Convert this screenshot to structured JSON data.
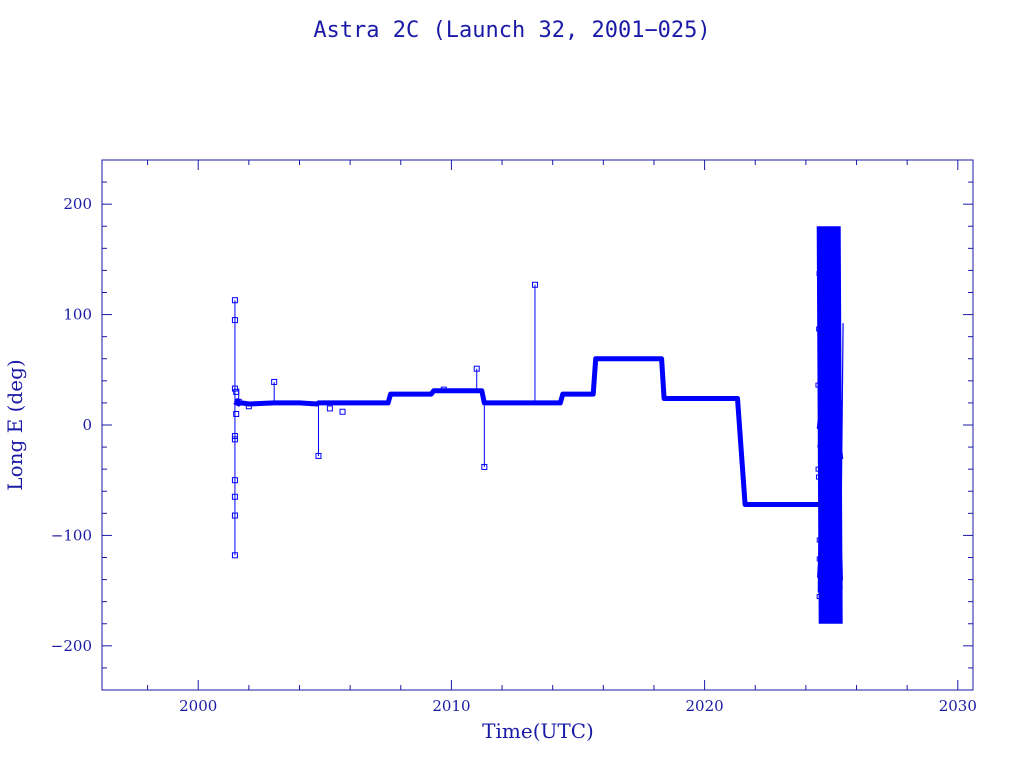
{
  "colors": {
    "text": "#1a1aa6",
    "axis": "#1a1aa6",
    "series": "#0000ff"
  },
  "chart_data": {
    "type": "line",
    "title": "Astra 2C (Launch 32, 2001−025)",
    "xlabel": "Time(UTC)",
    "ylabel": "Long E (deg)",
    "xlim": [
      1996.2,
      2030.6
    ],
    "ylim": [
      -240,
      240
    ],
    "x_ticks": [
      2000,
      2010,
      2020,
      2030
    ],
    "x_tick_labels": [
      "2000",
      "2010",
      "2020",
      "2030"
    ],
    "y_ticks": [
      -200,
      -100,
      0,
      100,
      200
    ],
    "y_tick_labels": [
      "−200",
      "−100",
      "0",
      "100",
      "200"
    ],
    "grid": false,
    "legend": "none",
    "series": [
      {
        "x": [
          2001.45,
          2001.5,
          2001.55,
          2001.6,
          2001.65,
          2001.7,
          2002.0,
          2003.0,
          2003.1,
          2004.0,
          2004.7,
          2004.75,
          2004.8,
          2005.2,
          2005.7,
          2006.5,
          2007.5,
          2007.6,
          2008.5,
          2009.2,
          2009.3,
          2010.0,
          2010.5,
          2011.2,
          2011.3,
          2011.5,
          2012.5,
          2013.3,
          2013.4,
          2014.3,
          2014.4,
          2015.6,
          2015.7,
          2016.5,
          2017.5,
          2018.3,
          2018.4,
          2019.5,
          2021.3,
          2021.6,
          2022.0,
          2023.5,
          2024.5
        ],
        "y": [
          21,
          20,
          22,
          19,
          20,
          20,
          19,
          20,
          20,
          20,
          19,
          20,
          20,
          20,
          20,
          20,
          20,
          28,
          28,
          28,
          31,
          31,
          31,
          31,
          20,
          20,
          20,
          20,
          20,
          20,
          28,
          28,
          60,
          60,
          60,
          60,
          24,
          24,
          24,
          -72,
          -72,
          -72,
          -72
        ],
        "markers": [
          {
            "x": 2001.45,
            "y": 113
          },
          {
            "x": 2001.45,
            "y": 95
          },
          {
            "x": 2001.45,
            "y": 33
          },
          {
            "x": 2001.45,
            "y": -10
          },
          {
            "x": 2001.45,
            "y": -13
          },
          {
            "x": 2001.45,
            "y": -50
          },
          {
            "x": 2001.45,
            "y": -65
          },
          {
            "x": 2001.45,
            "y": -82
          },
          {
            "x": 2001.45,
            "y": -118
          },
          {
            "x": 2001.5,
            "y": 30
          },
          {
            "x": 2001.5,
            "y": 10
          },
          {
            "x": 2001.6,
            "y": 21
          },
          {
            "x": 2002.0,
            "y": 17
          },
          {
            "x": 2003.0,
            "y": 39
          },
          {
            "x": 2004.75,
            "y": -28
          },
          {
            "x": 2005.2,
            "y": 15
          },
          {
            "x": 2005.7,
            "y": 12
          },
          {
            "x": 2009.7,
            "y": 32
          },
          {
            "x": 2011.0,
            "y": 51
          },
          {
            "x": 2011.3,
            "y": -38
          },
          {
            "x": 2013.3,
            "y": 127
          }
        ],
        "spikes": [
          {
            "x": 2001.45,
            "y0": -118,
            "y1": 113
          },
          {
            "x": 2001.6,
            "y0": 20,
            "y1": 33
          },
          {
            "x": 2003.0,
            "y0": 20,
            "y1": 39
          },
          {
            "x": 2004.75,
            "y0": -28,
            "y1": 20
          },
          {
            "x": 2011.0,
            "y0": 31,
            "y1": 51
          },
          {
            "x": 2011.3,
            "y0": -38,
            "y1": 20
          },
          {
            "x": 2013.3,
            "y0": 20,
            "y1": 127
          }
        ],
        "wrap_region": {
          "x0": 2024.45,
          "x1": 2025.35,
          "ymin": -180,
          "ymax": 180
        }
      }
    ]
  }
}
